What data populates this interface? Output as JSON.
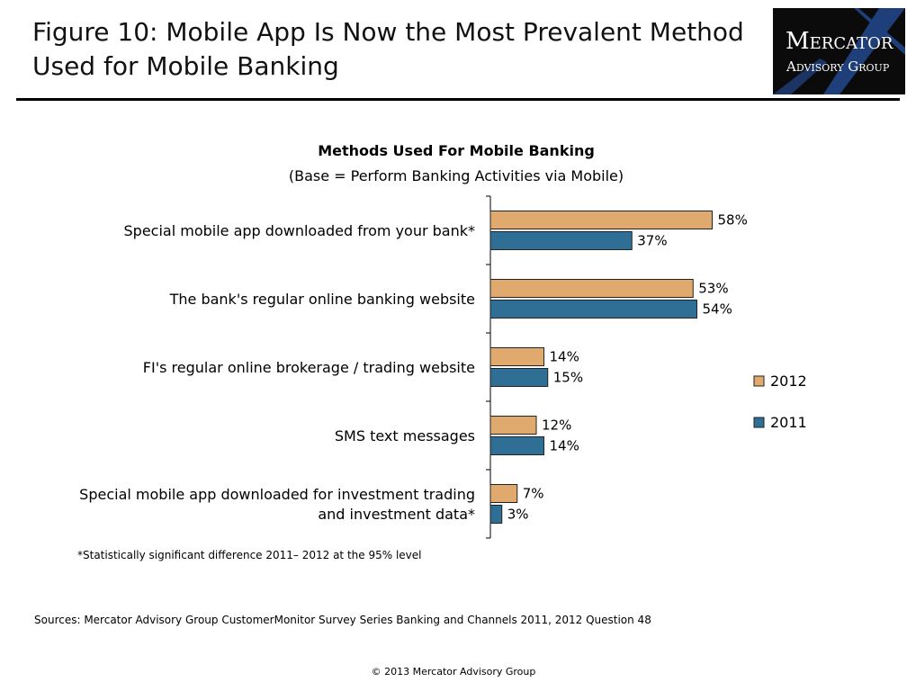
{
  "header": {
    "title_line1": "Figure 10: Mobile App Is Now the Most Prevalent Method",
    "title_line2": "Used for Mobile Banking"
  },
  "logo": {
    "line1": "Mercator",
    "line2": "Advisory Group"
  },
  "chart_data": {
    "type": "bar",
    "orientation": "horizontal",
    "title": "Methods Used For Mobile Banking",
    "subtitle": "(Base = Perform Banking Activities via Mobile)",
    "categories": [
      [
        "Special mobile app downloaded from your bank*"
      ],
      [
        "The bank's regular online banking website"
      ],
      [
        "FI's regular online brokerage / trading website"
      ],
      [
        "SMS text messages"
      ],
      [
        "Special mobile app downloaded for investment trading",
        "and investment data*"
      ]
    ],
    "series": [
      {
        "name": "2012",
        "values": [
          58,
          53,
          14,
          12,
          7
        ],
        "labels": [
          "58%",
          "53%",
          "14%",
          "12%",
          "7%"
        ],
        "color": "#E0A96D"
      },
      {
        "name": "2011",
        "values": [
          37,
          54,
          15,
          14,
          3
        ],
        "labels": [
          "37%",
          "54%",
          "15%",
          "14%",
          "3%"
        ],
        "color": "#2F6F96"
      }
    ],
    "value_unit": "%",
    "xlim": [
      0,
      100
    ],
    "grid": false,
    "legend_position": "right"
  },
  "footnote": "*Statistically significant difference 2011– 2012  at the 95% level",
  "sources": "Sources: Mercator Advisory Group CustomerMonitor Survey Series Banking and Channels 2011, 2012  Question 48",
  "copyright": "© 2013 Mercator Advisory Group",
  "colors": {
    "bar_2012": "#E0A96D",
    "bar_2011": "#2F6F96",
    "logo_bg": "#0b0b0b",
    "logo_x": "#1f3f7a"
  }
}
